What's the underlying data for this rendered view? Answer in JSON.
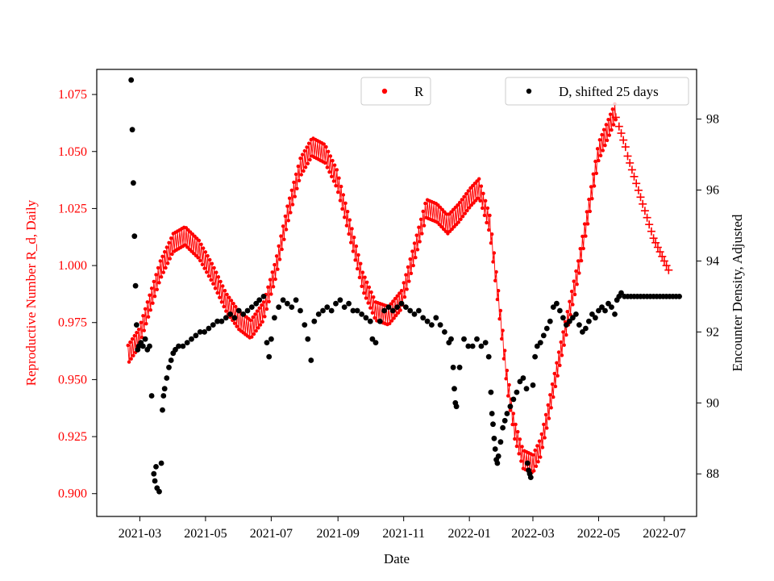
{
  "chart_data": {
    "type": "scatter",
    "title": "",
    "xlabel": "Date",
    "ylabel_left": "Reproductive Number R_d, Daily",
    "ylabel_right": "Encounter Density, Adjusted",
    "xlim": [
      "2021-01-20",
      "2022-07-31"
    ],
    "ylim_left": [
      0.89,
      1.086
    ],
    "ylim_right": [
      86.8,
      99.4
    ],
    "x_ticks": [
      "2021-03-01",
      "2021-05-01",
      "2021-07-01",
      "2021-09-01",
      "2021-11-01",
      "2022-01-01",
      "2022-03-01",
      "2022-05-01",
      "2022-07-01"
    ],
    "x_tick_labels": [
      "2021-03",
      "2021-05",
      "2021-07",
      "2021-09",
      "2021-11",
      "2022-01",
      "2022-03",
      "2022-05",
      "2022-07"
    ],
    "y_ticks_left": [
      0.9,
      0.925,
      0.95,
      0.975,
      1.0,
      1.025,
      1.05,
      1.075
    ],
    "y_tick_labels_left": [
      "0.900",
      "0.925",
      "0.950",
      "0.975",
      "1.000",
      "1.025",
      "1.050",
      "1.075"
    ],
    "y_ticks_right": [
      88,
      90,
      92,
      94,
      96,
      98
    ],
    "y_tick_labels_right": [
      "88",
      "90",
      "92",
      "94",
      "96",
      "98"
    ],
    "grid": false,
    "legend": [
      {
        "label": "R",
        "placement": "top-center",
        "color": "#ff0000",
        "marker": "circle"
      },
      {
        "label": "D, shifted 25 days",
        "placement": "top-right",
        "color": "#000000",
        "marker": "circle"
      }
    ],
    "colors": {
      "r_series": "#ff0000",
      "d_series": "#000000",
      "left_axis": "#ff0000",
      "right_axis": "#000000"
    },
    "series": [
      {
        "name": "R",
        "axis": "left",
        "marker": "circle",
        "oscillation_amplitude": 0.004,
        "envelope": [
          [
            "2021-02-18",
            0.961
          ],
          [
            "2021-02-28",
            0.968
          ],
          [
            "2021-03-10",
            0.983
          ],
          [
            "2021-03-20",
            0.998
          ],
          [
            "2021-04-01",
            1.01
          ],
          [
            "2021-04-12",
            1.013
          ],
          [
            "2021-04-25",
            1.007
          ],
          [
            "2021-05-08",
            0.996
          ],
          [
            "2021-05-20",
            0.984
          ],
          [
            "2021-06-01",
            0.976
          ],
          [
            "2021-06-12",
            0.972
          ],
          [
            "2021-06-24",
            0.98
          ],
          [
            "2021-07-05",
            0.998
          ],
          [
            "2021-07-16",
            1.022
          ],
          [
            "2021-07-28",
            1.043
          ],
          [
            "2021-08-08",
            1.052
          ],
          [
            "2021-08-20",
            1.049
          ],
          [
            "2021-08-31",
            1.038
          ],
          [
            "2021-09-12",
            1.016
          ],
          [
            "2021-09-24",
            0.993
          ],
          [
            "2021-10-06",
            0.98
          ],
          [
            "2021-10-18",
            0.978
          ],
          [
            "2021-10-30",
            0.985
          ],
          [
            "2021-11-10",
            1.004
          ],
          [
            "2021-11-22",
            1.025
          ],
          [
            "2021-12-02",
            1.023
          ],
          [
            "2021-12-12",
            1.018
          ],
          [
            "2021-12-22",
            1.023
          ],
          [
            "2022-01-02",
            1.03
          ],
          [
            "2022-01-10",
            1.034
          ],
          [
            "2022-01-20",
            1.018
          ],
          [
            "2022-01-28",
            0.985
          ],
          [
            "2022-02-05",
            0.95
          ],
          [
            "2022-02-12",
            0.928
          ],
          [
            "2022-02-20",
            0.915
          ],
          [
            "2022-03-01",
            0.913
          ],
          [
            "2022-03-08",
            0.92
          ],
          [
            "2022-03-16",
            0.937
          ],
          [
            "2022-03-25",
            0.958
          ],
          [
            "2022-04-03",
            0.978
          ],
          [
            "2022-04-12",
            0.998
          ],
          [
            "2022-04-22",
            1.025
          ],
          [
            "2022-05-01",
            1.05
          ],
          [
            "2022-05-10",
            1.06
          ],
          [
            "2022-05-17",
            1.068
          ]
        ]
      },
      {
        "name": "R",
        "axis": "left",
        "marker": "plus",
        "points": [
          [
            "2022-05-17",
            1.065
          ],
          [
            "2022-05-20",
            1.061
          ],
          [
            "2022-05-22",
            1.058
          ],
          [
            "2022-05-24",
            1.055
          ],
          [
            "2022-05-26",
            1.052
          ],
          [
            "2022-05-28",
            1.048
          ],
          [
            "2022-05-30",
            1.045
          ],
          [
            "2022-06-01",
            1.042
          ],
          [
            "2022-06-03",
            1.039
          ],
          [
            "2022-06-05",
            1.036
          ],
          [
            "2022-06-07",
            1.033
          ],
          [
            "2022-06-09",
            1.03
          ],
          [
            "2022-06-11",
            1.027
          ],
          [
            "2022-06-13",
            1.024
          ],
          [
            "2022-06-15",
            1.021
          ],
          [
            "2022-06-17",
            1.018
          ],
          [
            "2022-06-19",
            1.015
          ],
          [
            "2022-06-21",
            1.012
          ],
          [
            "2022-06-23",
            1.01
          ],
          [
            "2022-06-25",
            1.008
          ],
          [
            "2022-06-27",
            1.006
          ],
          [
            "2022-06-29",
            1.004
          ],
          [
            "2022-07-01",
            1.002
          ],
          [
            "2022-07-03",
            1.0
          ],
          [
            "2022-07-05",
            0.998
          ]
        ]
      },
      {
        "name": "D, shifted 25 days",
        "axis": "right",
        "marker": "circle",
        "points": [
          [
            "2021-02-21",
            99.1
          ],
          [
            "2021-02-22",
            97.7
          ],
          [
            "2021-02-23",
            96.2
          ],
          [
            "2021-02-24",
            94.7
          ],
          [
            "2021-02-25",
            93.3
          ],
          [
            "2021-02-26",
            92.2
          ],
          [
            "2021-02-27",
            91.5
          ],
          [
            "2021-02-28",
            91.6
          ],
          [
            "2021-03-02",
            91.7
          ],
          [
            "2021-03-04",
            91.6
          ],
          [
            "2021-03-06",
            91.8
          ],
          [
            "2021-03-08",
            91.5
          ],
          [
            "2021-03-10",
            91.6
          ],
          [
            "2021-03-12",
            90.2
          ],
          [
            "2021-03-14",
            88.0
          ],
          [
            "2021-03-15",
            87.8
          ],
          [
            "2021-03-16",
            88.2
          ],
          [
            "2021-03-17",
            87.6
          ],
          [
            "2021-03-19",
            87.5
          ],
          [
            "2021-03-21",
            88.3
          ],
          [
            "2021-03-22",
            89.8
          ],
          [
            "2021-03-23",
            90.2
          ],
          [
            "2021-03-24",
            90.4
          ],
          [
            "2021-03-26",
            90.7
          ],
          [
            "2021-03-28",
            91.0
          ],
          [
            "2021-03-30",
            91.2
          ],
          [
            "2021-04-01",
            91.4
          ],
          [
            "2021-04-03",
            91.5
          ],
          [
            "2021-04-06",
            91.6
          ],
          [
            "2021-04-10",
            91.6
          ],
          [
            "2021-04-14",
            91.7
          ],
          [
            "2021-04-18",
            91.8
          ],
          [
            "2021-04-22",
            91.9
          ],
          [
            "2021-04-26",
            92.0
          ],
          [
            "2021-04-30",
            92.0
          ],
          [
            "2021-05-04",
            92.1
          ],
          [
            "2021-05-08",
            92.2
          ],
          [
            "2021-05-12",
            92.3
          ],
          [
            "2021-05-16",
            92.3
          ],
          [
            "2021-05-20",
            92.4
          ],
          [
            "2021-05-24",
            92.5
          ],
          [
            "2021-05-28",
            92.4
          ],
          [
            "2021-06-01",
            92.6
          ],
          [
            "2021-06-05",
            92.5
          ],
          [
            "2021-06-09",
            92.6
          ],
          [
            "2021-06-13",
            92.7
          ],
          [
            "2021-06-17",
            92.8
          ],
          [
            "2021-06-20",
            92.9
          ],
          [
            "2021-06-24",
            93.0
          ],
          [
            "2021-06-27",
            91.7
          ],
          [
            "2021-06-29",
            91.3
          ],
          [
            "2021-07-01",
            91.8
          ],
          [
            "2021-07-04",
            92.4
          ],
          [
            "2021-07-08",
            92.7
          ],
          [
            "2021-07-12",
            92.9
          ],
          [
            "2021-07-16",
            92.8
          ],
          [
            "2021-07-20",
            92.7
          ],
          [
            "2021-07-24",
            92.9
          ],
          [
            "2021-07-28",
            92.6
          ],
          [
            "2021-08-01",
            92.2
          ],
          [
            "2021-08-04",
            91.8
          ],
          [
            "2021-08-07",
            91.2
          ],
          [
            "2021-08-10",
            92.3
          ],
          [
            "2021-08-14",
            92.5
          ],
          [
            "2021-08-18",
            92.6
          ],
          [
            "2021-08-22",
            92.7
          ],
          [
            "2021-08-26",
            92.6
          ],
          [
            "2021-08-30",
            92.8
          ],
          [
            "2021-09-03",
            92.9
          ],
          [
            "2021-09-07",
            92.7
          ],
          [
            "2021-09-11",
            92.8
          ],
          [
            "2021-09-15",
            92.6
          ],
          [
            "2021-09-19",
            92.6
          ],
          [
            "2021-09-23",
            92.5
          ],
          [
            "2021-09-27",
            92.4
          ],
          [
            "2021-10-01",
            92.3
          ],
          [
            "2021-10-03",
            91.8
          ],
          [
            "2021-10-06",
            91.7
          ],
          [
            "2021-10-10",
            92.3
          ],
          [
            "2021-10-14",
            92.6
          ],
          [
            "2021-10-18",
            92.7
          ],
          [
            "2021-10-22",
            92.6
          ],
          [
            "2021-10-26",
            92.7
          ],
          [
            "2021-10-30",
            92.8
          ],
          [
            "2021-11-03",
            92.7
          ],
          [
            "2021-11-07",
            92.6
          ],
          [
            "2021-11-11",
            92.5
          ],
          [
            "2021-11-15",
            92.6
          ],
          [
            "2021-11-19",
            92.4
          ],
          [
            "2021-11-23",
            92.3
          ],
          [
            "2021-11-27",
            92.2
          ],
          [
            "2021-12-01",
            92.4
          ],
          [
            "2021-12-05",
            92.2
          ],
          [
            "2021-12-09",
            92.0
          ],
          [
            "2021-12-13",
            91.7
          ],
          [
            "2021-12-15",
            91.8
          ],
          [
            "2021-12-17",
            91.0
          ],
          [
            "2021-12-18",
            90.4
          ],
          [
            "2021-12-19",
            90.0
          ],
          [
            "2021-12-20",
            89.9
          ],
          [
            "2021-12-23",
            91.0
          ],
          [
            "2021-12-27",
            91.8
          ],
          [
            "2021-12-31",
            91.6
          ],
          [
            "2022-01-04",
            91.6
          ],
          [
            "2022-01-08",
            91.8
          ],
          [
            "2022-01-12",
            91.6
          ],
          [
            "2022-01-16",
            91.7
          ],
          [
            "2022-01-19",
            91.3
          ],
          [
            "2022-01-21",
            90.3
          ],
          [
            "2022-01-22",
            89.7
          ],
          [
            "2022-01-23",
            89.4
          ],
          [
            "2022-01-24",
            89.0
          ],
          [
            "2022-01-25",
            88.7
          ],
          [
            "2022-01-26",
            88.4
          ],
          [
            "2022-01-27",
            88.3
          ],
          [
            "2022-01-28",
            88.5
          ],
          [
            "2022-01-30",
            88.9
          ],
          [
            "2022-02-01",
            89.3
          ],
          [
            "2022-02-03",
            89.5
          ],
          [
            "2022-02-05",
            89.7
          ],
          [
            "2022-02-08",
            89.9
          ],
          [
            "2022-02-11",
            90.1
          ],
          [
            "2022-02-14",
            90.3
          ],
          [
            "2022-02-17",
            90.6
          ],
          [
            "2022-02-20",
            90.7
          ],
          [
            "2022-02-23",
            90.4
          ],
          [
            "2022-02-24",
            88.3
          ],
          [
            "2022-02-25",
            88.1
          ],
          [
            "2022-02-26",
            88.0
          ],
          [
            "2022-02-27",
            87.9
          ],
          [
            "2022-03-01",
            90.5
          ],
          [
            "2022-03-03",
            91.3
          ],
          [
            "2022-03-05",
            91.6
          ],
          [
            "2022-03-08",
            91.7
          ],
          [
            "2022-03-11",
            91.9
          ],
          [
            "2022-03-14",
            92.1
          ],
          [
            "2022-03-17",
            92.3
          ],
          [
            "2022-03-20",
            92.7
          ],
          [
            "2022-03-23",
            92.8
          ],
          [
            "2022-03-26",
            92.6
          ],
          [
            "2022-03-29",
            92.4
          ],
          [
            "2022-04-01",
            92.2
          ],
          [
            "2022-04-04",
            92.3
          ],
          [
            "2022-04-07",
            92.4
          ],
          [
            "2022-04-10",
            92.5
          ],
          [
            "2022-04-13",
            92.2
          ],
          [
            "2022-04-16",
            92.0
          ],
          [
            "2022-04-19",
            92.1
          ],
          [
            "2022-04-22",
            92.3
          ],
          [
            "2022-04-25",
            92.5
          ],
          [
            "2022-04-28",
            92.4
          ],
          [
            "2022-05-01",
            92.6
          ],
          [
            "2022-05-04",
            92.7
          ],
          [
            "2022-05-07",
            92.6
          ],
          [
            "2022-05-10",
            92.8
          ],
          [
            "2022-05-13",
            92.7
          ],
          [
            "2022-05-16",
            92.5
          ],
          [
            "2022-05-18",
            92.9
          ],
          [
            "2022-05-20",
            93.0
          ],
          [
            "2022-05-22",
            93.1
          ],
          [
            "2022-05-25",
            93.0
          ],
          [
            "2022-05-28",
            93.0
          ],
          [
            "2022-05-31",
            93.0
          ],
          [
            "2022-06-03",
            93.0
          ],
          [
            "2022-06-06",
            93.0
          ],
          [
            "2022-06-09",
            93.0
          ],
          [
            "2022-06-12",
            93.0
          ],
          [
            "2022-06-15",
            93.0
          ],
          [
            "2022-06-18",
            93.0
          ],
          [
            "2022-06-21",
            93.0
          ],
          [
            "2022-06-24",
            93.0
          ],
          [
            "2022-06-27",
            93.0
          ],
          [
            "2022-06-30",
            93.0
          ],
          [
            "2022-07-03",
            93.0
          ],
          [
            "2022-07-06",
            93.0
          ],
          [
            "2022-07-09",
            93.0
          ],
          [
            "2022-07-12",
            93.0
          ],
          [
            "2022-07-15",
            93.0
          ]
        ]
      }
    ]
  }
}
